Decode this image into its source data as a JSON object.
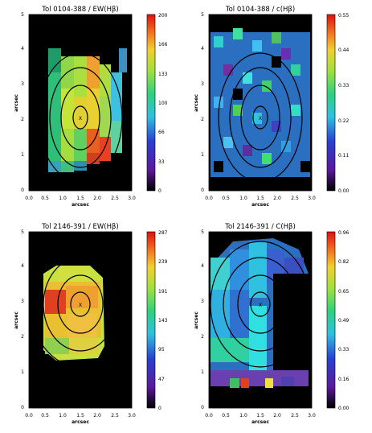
{
  "figure": {
    "panels": [
      {
        "id": "p1",
        "title": "Tol 0104-388 / EW(Hβ)",
        "xlabel": "arcsec",
        "ylabel": "arcsec",
        "xticks": [
          "0.0",
          "0.5",
          "1.0",
          "1.5",
          "2.0",
          "2.5",
          "3.0"
        ],
        "yticks": [
          "0",
          "1",
          "2",
          "3",
          "4",
          "5"
        ],
        "colorbar_ticks": [
          "200",
          "166",
          "133",
          "100",
          "66",
          "33",
          "0"
        ],
        "marker": "X",
        "colorbar_range": [
          0,
          200
        ]
      },
      {
        "id": "p2",
        "title": "Tol 0104-388 / c(Hβ)",
        "xlabel": "arcsec",
        "ylabel": "arcsec",
        "xticks": [
          "0.0",
          "0.5",
          "1.0",
          "1.5",
          "2.0",
          "2.5",
          "3.0"
        ],
        "yticks": [
          "0",
          "1",
          "2",
          "3",
          "4",
          "5"
        ],
        "colorbar_ticks": [
          "0.55",
          "0.44",
          "0.33",
          "0.22",
          "0.11",
          "0.00"
        ],
        "marker": "X",
        "colorbar_range": [
          0,
          0.55
        ]
      },
      {
        "id": "p3",
        "title": "Tol 2146-391 / EW(Hβ)",
        "xlabel": "arcsec",
        "ylabel": "arcsec",
        "xticks": [
          "0.0",
          "0.5",
          "1.0",
          "1.5",
          "2.0",
          "2.5",
          "3.0"
        ],
        "yticks": [
          "0",
          "1",
          "2",
          "3",
          "4",
          "5"
        ],
        "colorbar_ticks": [
          "287",
          "239",
          "191",
          "143",
          "95",
          "47",
          "0"
        ],
        "marker": "X",
        "colorbar_range": [
          0,
          287
        ]
      },
      {
        "id": "p4",
        "title": "Tol 2146-391 / C(Hβ)",
        "xlabel": "arcsec",
        "ylabel": "arcsec",
        "xticks": [
          "0.0",
          "0.5",
          "1.0",
          "1.5",
          "2.0",
          "2.5",
          "3.0"
        ],
        "yticks": [
          "0",
          "1",
          "2",
          "3",
          "4",
          "5"
        ],
        "colorbar_ticks": [
          "0.96",
          "0.82",
          "0.65",
          "0.49",
          "0.33",
          "0.16",
          "0.00"
        ],
        "marker": "X",
        "colorbar_range": [
          0,
          0.96
        ]
      }
    ]
  }
}
